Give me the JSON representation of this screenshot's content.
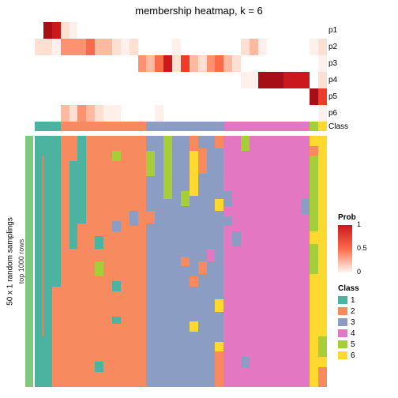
{
  "title": "membership heatmap, k = 6",
  "row_labels": [
    "p1",
    "p2",
    "p3",
    "p4",
    "p5",
    "p6"
  ],
  "class_label": "Class",
  "y_outer": "50 x 1 random samplings",
  "y_inner": "top 1000 rows",
  "prob_legend": {
    "title": "Prob",
    "ticks": [
      {
        "v": "1",
        "p": 0
      },
      {
        "v": "0.5",
        "p": 50
      },
      {
        "v": "0",
        "p": 100
      }
    ]
  },
  "class_legend": {
    "title": "Class",
    "items": [
      "1",
      "2",
      "3",
      "4",
      "5",
      "6"
    ]
  },
  "colors": {
    "sidebar": "#7fc97f",
    "teal": "#4cb3a0",
    "class": {
      "1": "#4cb3a0",
      "2": "#f78b5f",
      "3": "#8b9dc3",
      "4": "#e377c2",
      "5": "#a6ce39",
      "6": "#ffd92f"
    }
  },
  "prob_ramp": [
    "#ffffff",
    "#fff0eb",
    "#fee0d2",
    "#fcbba1",
    "#fc9272",
    "#fb6a4a",
    "#ef3b2c",
    "#cb181d",
    "#a50f15"
  ],
  "n_cols": 34,
  "blocks": [
    [
      0,
      3
    ],
    [
      3,
      9
    ],
    [
      9,
      13
    ],
    [
      13,
      17
    ],
    [
      17,
      22
    ],
    [
      22,
      26
    ],
    [
      26,
      32
    ],
    [
      32,
      34
    ]
  ],
  "prob_rows": [
    [
      0,
      8,
      7,
      2,
      1,
      0,
      0,
      0,
      0,
      0,
      0,
      0,
      0,
      0,
      0,
      0,
      0,
      0,
      0,
      0,
      0,
      0,
      0,
      0,
      0,
      0,
      0,
      0,
      0,
      0,
      0,
      0,
      0,
      0
    ],
    [
      2,
      2,
      1,
      4,
      4,
      4,
      5,
      3,
      3,
      2,
      1,
      2,
      0,
      0,
      0,
      0,
      1,
      0,
      0,
      0,
      0,
      0,
      0,
      0,
      2,
      3,
      1,
      0,
      0,
      0,
      0,
      0,
      1,
      2
    ],
    [
      0,
      0,
      0,
      0,
      0,
      0,
      0,
      0,
      0,
      0,
      0,
      0,
      4,
      3,
      5,
      7,
      2,
      6,
      3,
      2,
      4,
      5,
      3,
      2,
      0,
      0,
      0,
      0,
      0,
      0,
      0,
      0,
      0,
      1
    ],
    [
      0,
      0,
      0,
      0,
      0,
      0,
      0,
      0,
      0,
      0,
      0,
      0,
      0,
      0,
      0,
      0,
      0,
      0,
      0,
      0,
      0,
      0,
      0,
      0,
      1,
      1,
      8,
      8,
      8,
      7,
      7,
      7,
      0,
      2
    ],
    [
      0,
      0,
      0,
      0,
      0,
      0,
      0,
      0,
      0,
      0,
      0,
      0,
      0,
      0,
      0,
      0,
      0,
      0,
      0,
      0,
      0,
      0,
      0,
      0,
      0,
      0,
      0,
      0,
      0,
      0,
      0,
      0,
      8,
      6
    ],
    [
      0,
      0,
      0,
      3,
      2,
      4,
      3,
      2,
      1,
      1,
      0,
      0,
      0,
      0,
      1,
      0,
      0,
      0,
      0,
      0,
      0,
      0,
      0,
      0,
      0,
      0,
      0,
      0,
      0,
      0,
      0,
      0,
      0,
      1
    ]
  ],
  "class_row": [
    1,
    1,
    1,
    2,
    2,
    2,
    2,
    2,
    2,
    2,
    2,
    2,
    2,
    3,
    3,
    3,
    3,
    3,
    3,
    3,
    3,
    3,
    4,
    4,
    4,
    4,
    4,
    4,
    4,
    4,
    4,
    4,
    5,
    6
  ],
  "heatmap_cols": [
    [
      [
        "1",
        0.08
      ],
      [
        "2",
        0.72
      ],
      [
        "1",
        0.2
      ]
    ],
    [
      [
        "1",
        1.0
      ]
    ],
    [
      [
        "1",
        0.6
      ],
      [
        "2",
        0.4
      ]
    ],
    [
      [
        "2",
        1.0
      ]
    ],
    [
      [
        "2",
        0.1
      ],
      [
        "1",
        0.35
      ],
      [
        "2",
        0.55
      ]
    ],
    [
      [
        "1",
        0.35
      ],
      [
        "2",
        0.65
      ]
    ],
    [
      [
        "2",
        1.0
      ]
    ],
    [
      [
        "2",
        0.4
      ],
      [
        "1",
        0.05
      ],
      [
        "2",
        0.05
      ],
      [
        "5",
        0.06
      ],
      [
        "2",
        0.34
      ],
      [
        "1",
        0.04
      ],
      [
        "2",
        0.06
      ]
    ],
    [
      [
        "2",
        1.0
      ]
    ],
    [
      [
        "2",
        0.06
      ],
      [
        "5",
        0.04
      ],
      [
        "2",
        0.24
      ],
      [
        "3",
        0.04
      ],
      [
        "2",
        0.2
      ],
      [
        "1",
        0.04
      ],
      [
        "2",
        0.1
      ],
      [
        "1",
        0.03
      ],
      [
        "2",
        0.25
      ]
    ],
    [
      [
        "2",
        1.0
      ]
    ],
    [
      [
        "2",
        0.3
      ],
      [
        "3",
        0.06
      ],
      [
        "2",
        0.64
      ]
    ],
    [
      [
        "2",
        1.0
      ]
    ],
    [
      [
        "3",
        0.06
      ],
      [
        "5",
        0.1
      ],
      [
        "3",
        0.14
      ],
      [
        "2",
        0.05
      ],
      [
        "3",
        0.65
      ]
    ],
    [
      [
        "3",
        1.0
      ]
    ],
    [
      [
        "5",
        0.25
      ],
      [
        "3",
        0.75
      ]
    ],
    [
      [
        "3",
        1.0
      ]
    ],
    [
      [
        "3",
        0.22
      ],
      [
        "5",
        0.06
      ],
      [
        "3",
        0.2
      ],
      [
        "2",
        0.04
      ],
      [
        "3",
        0.48
      ]
    ],
    [
      [
        "2",
        0.06
      ],
      [
        "6",
        0.18
      ],
      [
        "3",
        0.32
      ],
      [
        "2",
        0.04
      ],
      [
        "3",
        0.14
      ],
      [
        "6",
        0.04
      ],
      [
        "3",
        0.22
      ]
    ],
    [
      [
        "3",
        0.05
      ],
      [
        "2",
        0.1
      ],
      [
        "3",
        0.35
      ],
      [
        "2",
        0.05
      ],
      [
        "3",
        0.45
      ]
    ],
    [
      [
        "3",
        0.45
      ],
      [
        "4",
        0.05
      ],
      [
        "3",
        0.5
      ]
    ],
    [
      [
        "2",
        0.05
      ],
      [
        "3",
        0.2
      ],
      [
        "6",
        0.05
      ],
      [
        "3",
        0.35
      ],
      [
        "6",
        0.05
      ],
      [
        "3",
        0.12
      ],
      [
        "6",
        0.04
      ],
      [
        "2",
        0.14
      ]
    ],
    [
      [
        "4",
        0.22
      ],
      [
        "3",
        0.06
      ],
      [
        "4",
        0.04
      ],
      [
        "3",
        0.04
      ],
      [
        "4",
        0.64
      ]
    ],
    [
      [
        "4",
        0.38
      ],
      [
        "3",
        0.06
      ],
      [
        "4",
        0.56
      ]
    ],
    [
      [
        "5",
        0.06
      ],
      [
        "4",
        0.82
      ],
      [
        "3",
        0.04
      ],
      [
        "4",
        0.08
      ]
    ],
    [
      [
        "4",
        1.0
      ]
    ],
    [
      [
        "4",
        1.0
      ]
    ],
    [
      [
        "4",
        1.0
      ]
    ],
    [
      [
        "4",
        1.0
      ]
    ],
    [
      [
        "4",
        1.0
      ]
    ],
    [
      [
        "4",
        1.0
      ]
    ],
    [
      [
        "4",
        0.25
      ],
      [
        "3",
        0.06
      ],
      [
        "4",
        0.69
      ]
    ],
    [
      [
        "6",
        0.04
      ],
      [
        "2",
        0.04
      ],
      [
        "5",
        0.3
      ],
      [
        "6",
        0.05
      ],
      [
        "5",
        0.12
      ],
      [
        "6",
        0.45
      ]
    ],
    [
      [
        "6",
        0.8
      ],
      [
        "5",
        0.08
      ],
      [
        "6",
        0.04
      ],
      [
        "2",
        0.08
      ]
    ]
  ]
}
